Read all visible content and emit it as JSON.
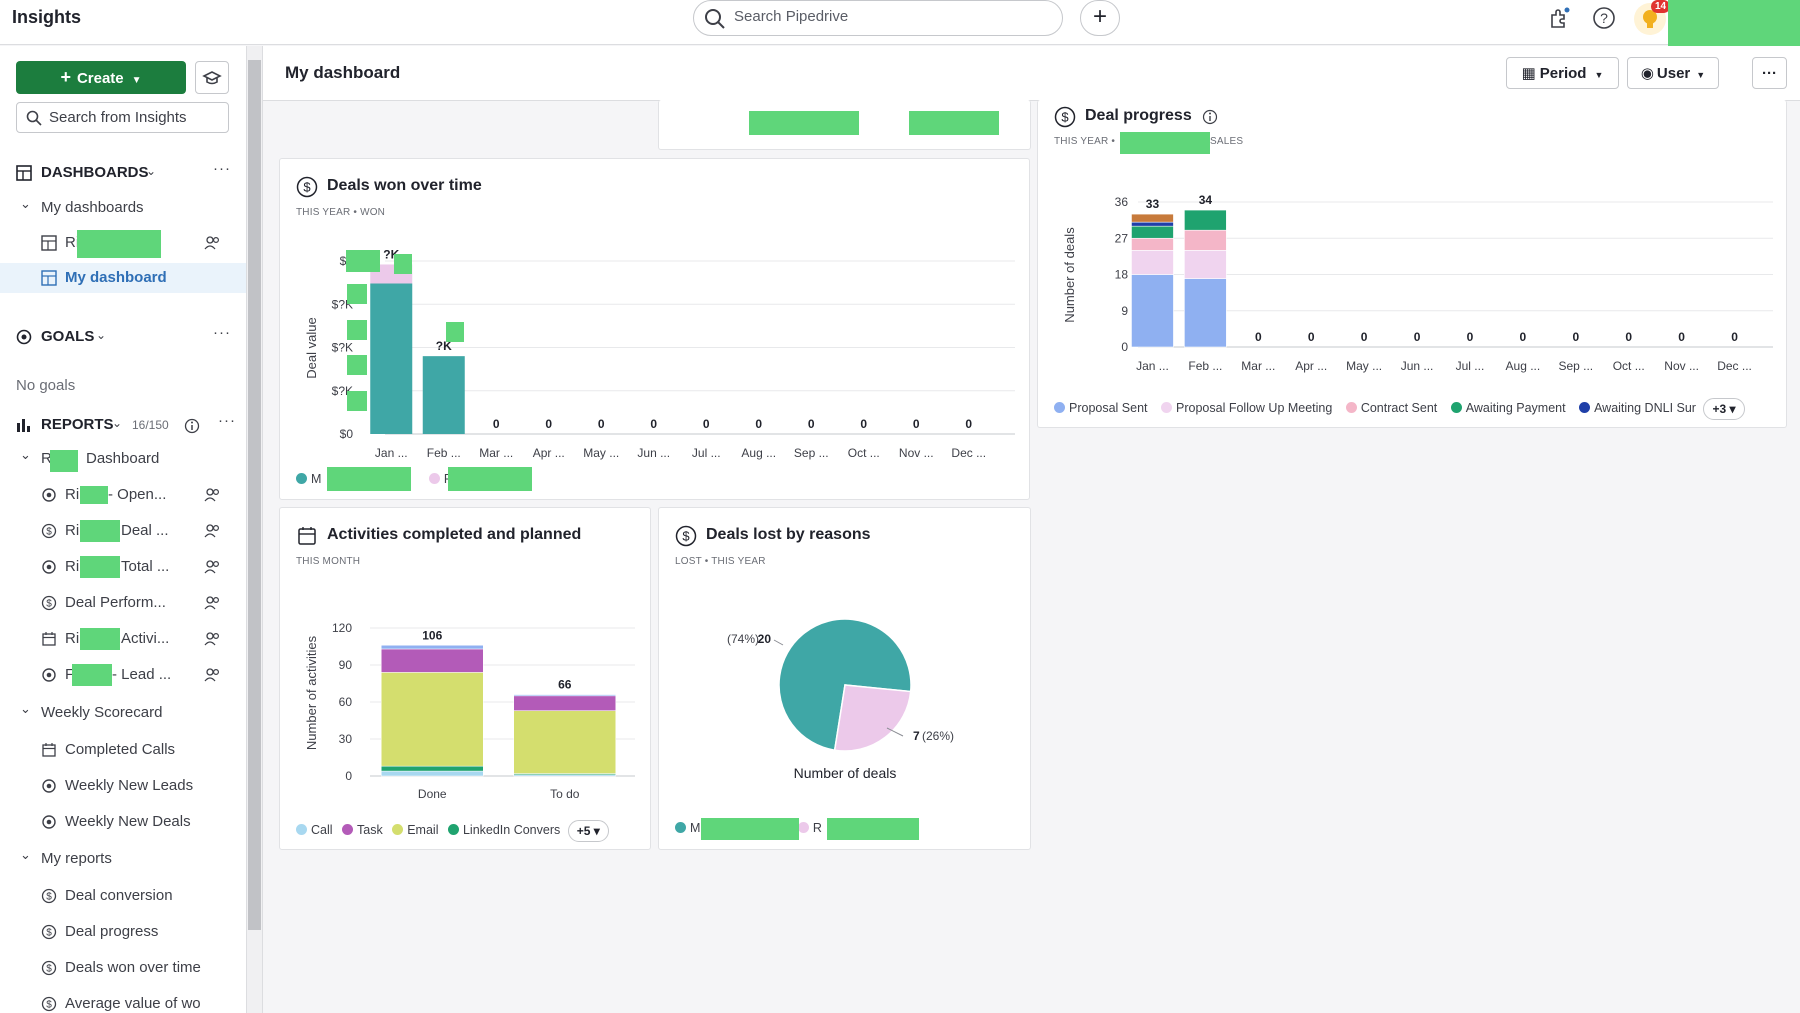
{
  "app": {
    "title": "Insights"
  },
  "topbar": {
    "search_placeholder": "Search Pipedrive",
    "add_label": "+",
    "notification_count": "14"
  },
  "sidebar": {
    "create_label": "Create",
    "search_placeholder": "Search from Insights",
    "dashboards_label": "DASHBOARDS",
    "my_dashboards_label": "My dashboards",
    "dashboard_items": [
      {
        "label": "Ri"
      },
      {
        "label": "My dashboard"
      }
    ],
    "goals_label": "GOALS",
    "no_goals": "No goals",
    "reports_label": "REPORTS",
    "reports_count": "16/150",
    "groups": [
      {
        "label": "Dashboard",
        "prefix": "R"
      },
      {
        "label": "Weekly Scorecard"
      },
      {
        "label": "My reports"
      }
    ],
    "group1_items": [
      {
        "prefix": "Ri",
        "label": "- Open..."
      },
      {
        "prefix": "Ri",
        "label": "Deal ..."
      },
      {
        "prefix": "Ri",
        "label": "Total ..."
      },
      {
        "prefix": "",
        "label": "Deal Perform..."
      },
      {
        "prefix": "Ri",
        "label": "Activi..."
      },
      {
        "prefix": "F",
        "label": "- Lead ..."
      }
    ],
    "weekly_items": [
      "Completed Calls",
      "Weekly New Leads",
      "Weekly New Deals"
    ],
    "my_report_items": [
      "Deal conversion",
      "Deal progress",
      "Deals won over time",
      "Average value of wo"
    ]
  },
  "header": {
    "title": "My dashboard",
    "period_label": "Period",
    "user_label": "User",
    "more_label": "···"
  },
  "deals_won": {
    "title": "Deals won over time",
    "subtitle": "THIS YEAR  •  WON",
    "ylabel": "Deal value",
    "legend": [
      "M",
      "R"
    ]
  },
  "deal_progress": {
    "title": "Deal progress",
    "subtitle_left": "THIS YEAR  •",
    "subtitle_right": "SALES",
    "ylabel": "Number of deals",
    "legend": [
      "Proposal Sent",
      "Proposal Follow Up Meeting",
      "Contract Sent",
      "Awaiting Payment",
      "Awaiting DNLI Sur"
    ],
    "more_chip": "+3"
  },
  "activities": {
    "title": "Activities completed and planned",
    "subtitle": "THIS MONTH",
    "ylabel": "Number of activities",
    "legend": [
      "Call",
      "Task",
      "Email",
      "LinkedIn Convers"
    ],
    "more_chip": "+5"
  },
  "deals_lost": {
    "title": "Deals lost by reasons",
    "subtitle": "LOST  •  THIS YEAR",
    "xlabel": "Number of deals",
    "legend": [
      "M",
      "R"
    ]
  },
  "colors": {
    "teal": "#3fa7a6",
    "pink_light": "#ecc9ea",
    "purple": "#b35bb8",
    "lime": "#d4de6e",
    "green": "#1fa36f",
    "blue_light": "#8fb0f1",
    "blue_pale": "#a8d8f0",
    "redaction": "#5fd67a"
  },
  "chart_data": [
    {
      "type": "bar",
      "title": "Deals won over time",
      "ylabel": "Deal value",
      "categories": [
        "Jan ...",
        "Feb ...",
        "Mar ...",
        "Apr ...",
        "May ...",
        "Jun ...",
        "Jul ...",
        "Aug ...",
        "Sep ...",
        "Oct ...",
        "Nov ...",
        "Dec ..."
      ],
      "series": [
        {
          "name": "M",
          "values": [
            0.87,
            0.45,
            0,
            0,
            0,
            0,
            0,
            0,
            0,
            0,
            0,
            0
          ]
        },
        {
          "name": "R",
          "values": [
            0.11,
            0,
            0,
            0,
            0,
            0,
            0,
            0,
            0,
            0,
            0,
            0
          ]
        }
      ],
      "bar_labels": [
        "?K",
        "?K",
        "0",
        "0",
        "0",
        "0",
        "0",
        "0",
        "0",
        "0",
        "0",
        "0"
      ],
      "yticks": [
        "$0",
        "$?K",
        "$?K",
        "$?K",
        "$?"
      ],
      "ylim": [
        0,
        1
      ],
      "note": "values are relative because axis amounts are redacted"
    },
    {
      "type": "bar",
      "title": "Deal progress",
      "ylabel": "Number of deals",
      "categories": [
        "Jan ...",
        "Feb ...",
        "Mar ...",
        "Apr ...",
        "May ...",
        "Jun ...",
        "Jul ...",
        "Aug ...",
        "Sep ...",
        "Oct ...",
        "Nov ...",
        "Dec ..."
      ],
      "totals": [
        33,
        34,
        0,
        0,
        0,
        0,
        0,
        0,
        0,
        0,
        0,
        0
      ],
      "series": [
        {
          "name": "Proposal Sent",
          "values": [
            18,
            17,
            0,
            0,
            0,
            0,
            0,
            0,
            0,
            0,
            0,
            0
          ]
        },
        {
          "name": "Proposal Follow Up Meeting",
          "values": [
            6,
            7,
            0,
            0,
            0,
            0,
            0,
            0,
            0,
            0,
            0,
            0
          ]
        },
        {
          "name": "Contract Sent",
          "values": [
            3,
            5,
            0,
            0,
            0,
            0,
            0,
            0,
            0,
            0,
            0,
            0
          ]
        },
        {
          "name": "Awaiting Payment",
          "values": [
            3,
            5,
            0,
            0,
            0,
            0,
            0,
            0,
            0,
            0,
            0,
            0
          ]
        },
        {
          "name": "Awaiting DNLI Sur",
          "values": [
            1,
            0,
            0,
            0,
            0,
            0,
            0,
            0,
            0,
            0,
            0,
            0
          ]
        },
        {
          "name": "",
          "values": [
            2,
            0,
            0,
            0,
            0,
            0,
            0,
            0,
            0,
            0,
            0,
            0
          ]
        }
      ],
      "yticks": [
        0,
        9,
        18,
        27,
        36
      ],
      "ylim": [
        0,
        36
      ]
    },
    {
      "type": "bar",
      "title": "Activities completed and planned",
      "ylabel": "Number of activities",
      "categories": [
        "Done",
        "To do"
      ],
      "totals": [
        106,
        66
      ],
      "series": [
        {
          "name": "Call",
          "values": [
            4,
            1
          ]
        },
        {
          "name": "LinkedIn Convers",
          "values": [
            4,
            1
          ]
        },
        {
          "name": "Email",
          "values": [
            76,
            51
          ]
        },
        {
          "name": "Task",
          "values": [
            19,
            12
          ]
        },
        {
          "name": "",
          "values": [
            3,
            1
          ]
        }
      ],
      "yticks": [
        0,
        30,
        60,
        90,
        120
      ],
      "ylim": [
        0,
        120
      ]
    },
    {
      "type": "pie",
      "title": "Deals lost by reasons",
      "xlabel": "Number of deals",
      "slices": [
        {
          "name": "M",
          "value": 20,
          "label": "20 (74%)"
        },
        {
          "name": "R",
          "value": 7,
          "label": "7 (26%)"
        }
      ]
    }
  ]
}
